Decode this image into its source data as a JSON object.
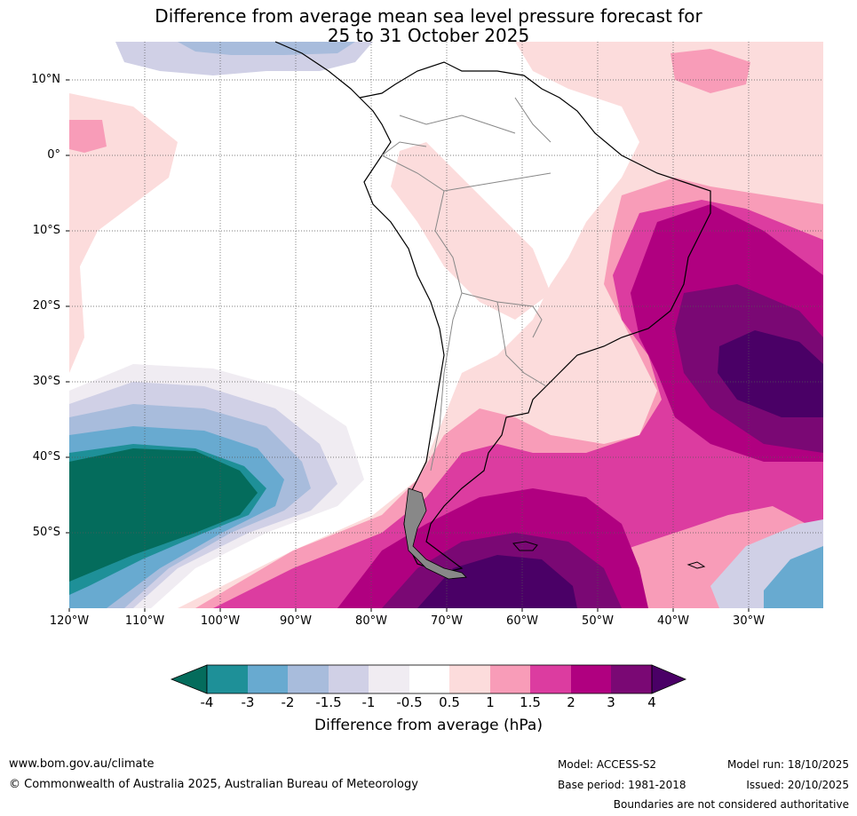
{
  "title": {
    "line1": "Difference from average mean sea level pressure forecast for",
    "line2": "25 to 31 October 2025"
  },
  "map": {
    "region": "South America",
    "lat_labels": [
      "10°N",
      "0°",
      "10°S",
      "20°S",
      "30°S",
      "40°S",
      "50°S"
    ],
    "lon_labels": [
      "120°W",
      "110°W",
      "100°W",
      "90°W",
      "80°W",
      "70°W",
      "60°W",
      "50°W",
      "40°W",
      "30°W"
    ]
  },
  "colorbar": {
    "tick_labels": [
      "-4",
      "-3",
      "-2",
      "-1.5",
      "-1",
      "-0.5",
      "0.5",
      "1",
      "1.5",
      "2",
      "3",
      "4"
    ],
    "colors": [
      "#046c5c",
      "#1e9098",
      "#68aad0",
      "#a8bcdc",
      "#d0d0e6",
      "#f0ecf2",
      "#ffffff",
      "#fcdcdc",
      "#f89cb8",
      "#dc3ca0",
      "#b00080",
      "#7a0874",
      "#4a0066"
    ],
    "title": "Difference from average (hPa)"
  },
  "footer": {
    "website": "www.bom.gov.au/climate",
    "copyright": "© Commonwealth of Australia 2025, Australian Bureau of Meteorology",
    "model": "Model: ACCESS-S2",
    "base_period": "Base period: 1981-2018",
    "model_run": "Model run: 18/10/2025",
    "issued": "Issued: 20/10/2025",
    "disclaimer": "Boundaries are not considered authoritative"
  }
}
